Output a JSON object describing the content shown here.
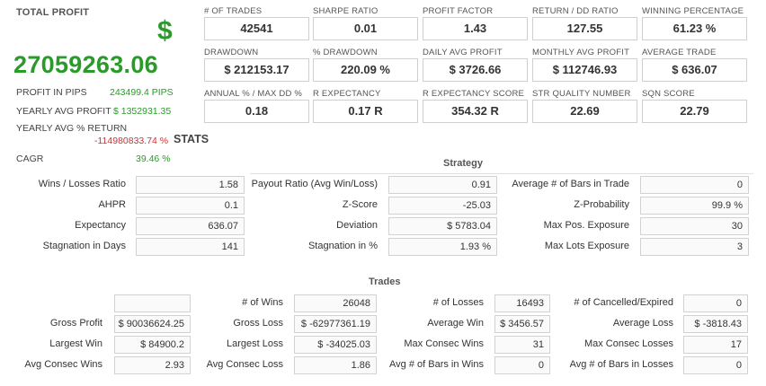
{
  "summary": {
    "total_profit_label": "TOTAL PROFIT",
    "currency_symbol": "$",
    "total_profit_value": "27059263.06",
    "rows": [
      {
        "label": "PROFIT IN PIPS",
        "value": "243499.4 PIPS"
      },
      {
        "label": "YEARLY AVG PROFIT",
        "value": "$ 1352931.35"
      },
      {
        "label": "YEARLY AVG % RETURN",
        "value": "-114980833.74 %"
      },
      {
        "label": "CAGR",
        "value": "39.46 %"
      }
    ],
    "stats_title": "STATS"
  },
  "metrics": [
    {
      "label": "# OF TRADES",
      "value": "42541"
    },
    {
      "label": "SHARPE RATIO",
      "value": "0.01"
    },
    {
      "label": "PROFIT FACTOR",
      "value": "1.43"
    },
    {
      "label": "RETURN / DD RATIO",
      "value": "127.55"
    },
    {
      "label": "WINNING PERCENTAGE",
      "value": "61.23 %"
    },
    {
      "label": "DRAWDOWN",
      "value": "$ 212153.17"
    },
    {
      "label": "% DRAWDOWN",
      "value": "220.09 %"
    },
    {
      "label": "DAILY AVG PROFIT",
      "value": "$ 3726.66"
    },
    {
      "label": "MONTHLY AVG PROFIT",
      "value": "$ 112746.93"
    },
    {
      "label": "AVERAGE TRADE",
      "value": "$ 636.07"
    },
    {
      "label": "ANNUAL % / MAX DD %",
      "value": "0.18"
    },
    {
      "label": "R EXPECTANCY",
      "value": "0.17 R"
    },
    {
      "label": "R EXPECTANCY SCORE",
      "value": "354.32 R"
    },
    {
      "label": "STR QUALITY NUMBER",
      "value": "22.69"
    },
    {
      "label": "SQN SCORE",
      "value": "22.79"
    }
  ],
  "strategy": {
    "title": "Strategy",
    "rows": [
      [
        {
          "label": "Wins / Losses Ratio",
          "value": "1.58"
        },
        {
          "label": "Payout Ratio (Avg Win/Loss)",
          "value": "0.91"
        },
        {
          "label": "Average # of Bars in Trade",
          "value": "0"
        }
      ],
      [
        {
          "label": "AHPR",
          "value": "0.1"
        },
        {
          "label": "Z-Score",
          "value": "-25.03"
        },
        {
          "label": "Z-Probability",
          "value": "99.9 %"
        }
      ],
      [
        {
          "label": "Expectancy",
          "value": "636.07"
        },
        {
          "label": "Deviation",
          "value": "$ 5783.04"
        },
        {
          "label": "Max Pos. Exposure",
          "value": "30"
        }
      ],
      [
        {
          "label": "Stagnation in Days",
          "value": "141"
        },
        {
          "label": "Stagnation in %",
          "value": "1.93 %"
        },
        {
          "label": "Max Lots Exposure",
          "value": "3"
        }
      ]
    ]
  },
  "trades": {
    "title": "Trades",
    "rows": [
      [
        {
          "label": "",
          "value": ""
        },
        {
          "label": "# of Wins",
          "value": "26048"
        },
        {
          "label": "# of Losses",
          "value": "16493"
        },
        {
          "label": "# of Cancelled/Expired",
          "value": "0"
        }
      ],
      [
        {
          "label": "Gross Profit",
          "value": "$ 90036624.25"
        },
        {
          "label": "Gross Loss",
          "value": "$ -62977361.19"
        },
        {
          "label": "Average Win",
          "value": "$ 3456.57"
        },
        {
          "label": "Average Loss",
          "value": "$ -3818.43"
        }
      ],
      [
        {
          "label": "Largest Win",
          "value": "$ 84900.2"
        },
        {
          "label": "Largest Loss",
          "value": "$ -34025.03"
        },
        {
          "label": "Max Consec Wins",
          "value": "31"
        },
        {
          "label": "Max Consec Losses",
          "value": "17"
        }
      ],
      [
        {
          "label": "Avg Consec Wins",
          "value": "2.93"
        },
        {
          "label": "Avg Consec Loss",
          "value": "1.86"
        },
        {
          "label": "Avg # of Bars in Wins",
          "value": "0"
        },
        {
          "label": "Avg # of Bars in Losses",
          "value": "0"
        }
      ]
    ]
  }
}
